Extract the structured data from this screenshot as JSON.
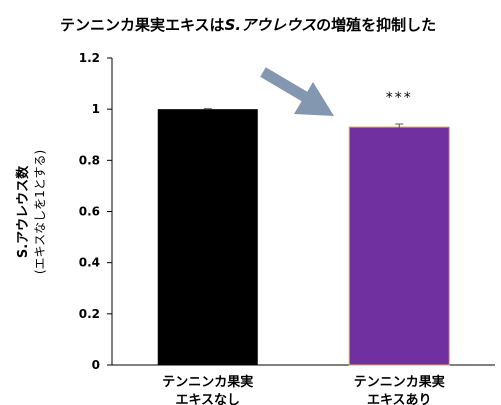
{
  "chart_data": {
    "type": "bar",
    "title_parts": [
      "テンニンカ果実エキスは",
      "S",
      ".アウレウス",
      "の増殖を抑制した"
    ],
    "ylabel": "S.アウレウス数",
    "ylabel_sub": "(エキスなしを1とする)",
    "ylim": [
      0,
      1.2
    ],
    "yticks": [
      "0",
      "0.2",
      "0.4",
      "0.6",
      "0.8",
      "1",
      "1.2"
    ],
    "categories": [
      [
        "テンニンカ果実",
        "エキスなし"
      ],
      [
        "テンニンカ果実",
        "エキスあり"
      ]
    ],
    "values": [
      1.0,
      0.93
    ],
    "error": [
      0.002,
      0.012
    ],
    "colors": [
      "#000000",
      "#7030a0"
    ],
    "significance": [
      "",
      "***"
    ],
    "arrow_color": "#8497b0"
  }
}
